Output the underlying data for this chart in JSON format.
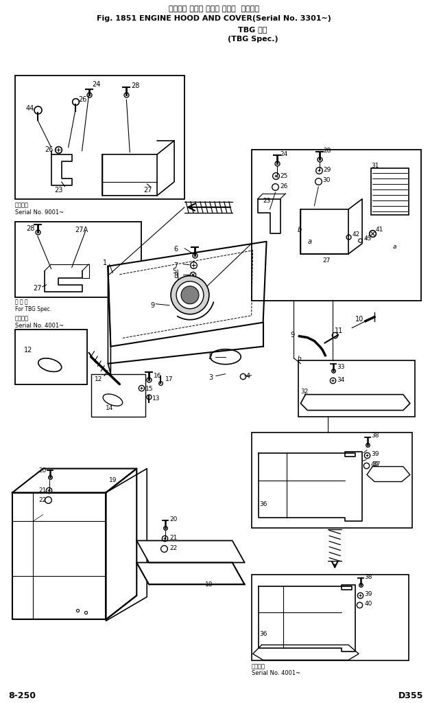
{
  "title_line1": "エンジン フード および カバー  適用号機",
  "title_line2": "Fig. 1851 ENGINE HOOD AND COVER(Serial No. 3301~)",
  "title_line3": "TBG 仕様",
  "title_line4": "(TBG Spec.)",
  "serial_9001": "適用号機",
  "serial_9001b": "Serial No. 9001~",
  "tbg_spec": "For TBG Spec.",
  "tbg_spec_jp": "西 配 向",
  "serial_4001": "適用号機",
  "serial_4001b": "Serial No. 4001~",
  "serial_4001c": "適用号機",
  "serial_4001d": "Serial No. 4001~",
  "bottom_left": "8-250",
  "bottom_right": "D355",
  "bg_color": "#ffffff",
  "line_color": "#000000",
  "font_color": "#000000"
}
